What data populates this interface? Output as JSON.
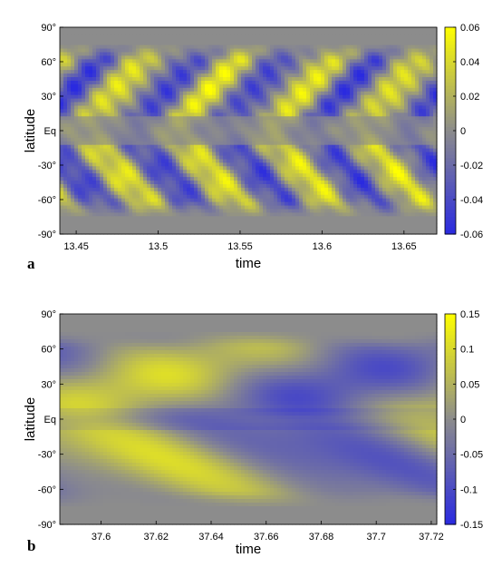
{
  "chart_data": [
    {
      "type": "heatmap",
      "panel_label": "a",
      "xlabel": "time",
      "ylabel": "latitude",
      "xlim": [
        13.44,
        13.67
      ],
      "ylim": [
        -90,
        90
      ],
      "x_ticks": [
        {
          "value": 13.45,
          "label": "13.45"
        },
        {
          "value": 13.5,
          "label": "13.5"
        },
        {
          "value": 13.55,
          "label": "13.55"
        },
        {
          "value": 13.6,
          "label": "13.6"
        },
        {
          "value": 13.65,
          "label": "13.65"
        }
      ],
      "y_ticks": [
        {
          "value": 90,
          "label": "90°"
        },
        {
          "value": 60,
          "label": "60°"
        },
        {
          "value": 30,
          "label": "30°"
        },
        {
          "value": 0,
          "label": "Eq"
        },
        {
          "value": -30,
          "label": "-30°"
        },
        {
          "value": -60,
          "label": "-60°"
        },
        {
          "value": -90,
          "label": "-90°"
        }
      ],
      "colorbar": {
        "range": [
          -0.06,
          0.06
        ],
        "ticks": [
          {
            "value": 0.06,
            "label": "0.06"
          },
          {
            "value": 0.04,
            "label": "0.04"
          },
          {
            "value": 0.02,
            "label": "0.02"
          },
          {
            "value": 0,
            "label": "0"
          },
          {
            "value": -0.02,
            "label": "-0.02"
          },
          {
            "value": -0.04,
            "label": "-0.04"
          },
          {
            "value": -0.06,
            "label": "-0.06"
          }
        ],
        "colors": {
          "low": "#2a2ae0",
          "mid": "#8c8c8c",
          "high": "#ffff00"
        }
      },
      "field": {
        "amplitude": 0.045,
        "period": 0.056,
        "phase_speed": 0.38
      }
    },
    {
      "type": "heatmap",
      "panel_label": "b",
      "xlabel": "time",
      "ylabel": "latitude",
      "xlim": [
        37.585,
        37.722
      ],
      "ylim": [
        -90,
        90
      ],
      "x_ticks": [
        {
          "value": 37.6,
          "label": "37.6"
        },
        {
          "value": 37.62,
          "label": "37.62"
        },
        {
          "value": 37.64,
          "label": "37.64"
        },
        {
          "value": 37.66,
          "label": "37.66"
        },
        {
          "value": 37.68,
          "label": "37.68"
        },
        {
          "value": 37.7,
          "label": "37.7"
        },
        {
          "value": 37.72,
          "label": "37.72"
        }
      ],
      "y_ticks": [
        {
          "value": 90,
          "label": "90°"
        },
        {
          "value": 60,
          "label": "60°"
        },
        {
          "value": 30,
          "label": "30°"
        },
        {
          "value": 0,
          "label": "Eq"
        },
        {
          "value": -30,
          "label": "-30°"
        },
        {
          "value": -60,
          "label": "-60°"
        },
        {
          "value": -90,
          "label": "-90°"
        }
      ],
      "colorbar": {
        "range": [
          -0.15,
          0.15
        ],
        "ticks": [
          {
            "value": 0.15,
            "label": "0.15"
          },
          {
            "value": 0.1,
            "label": "0.1"
          },
          {
            "value": 0.05,
            "label": "0.05"
          },
          {
            "value": 0,
            "label": "0"
          },
          {
            "value": -0.05,
            "label": "-0.05"
          },
          {
            "value": -0.1,
            "label": "-0.1"
          },
          {
            "value": -0.15,
            "label": "-0.15"
          }
        ],
        "colors": {
          "low": "#2a2ae0",
          "mid": "#8c8c8c",
          "high": "#ffff00"
        }
      },
      "field": {
        "amplitude": 0.09,
        "period": 0.13,
        "phase_speed": 0.2
      }
    }
  ]
}
